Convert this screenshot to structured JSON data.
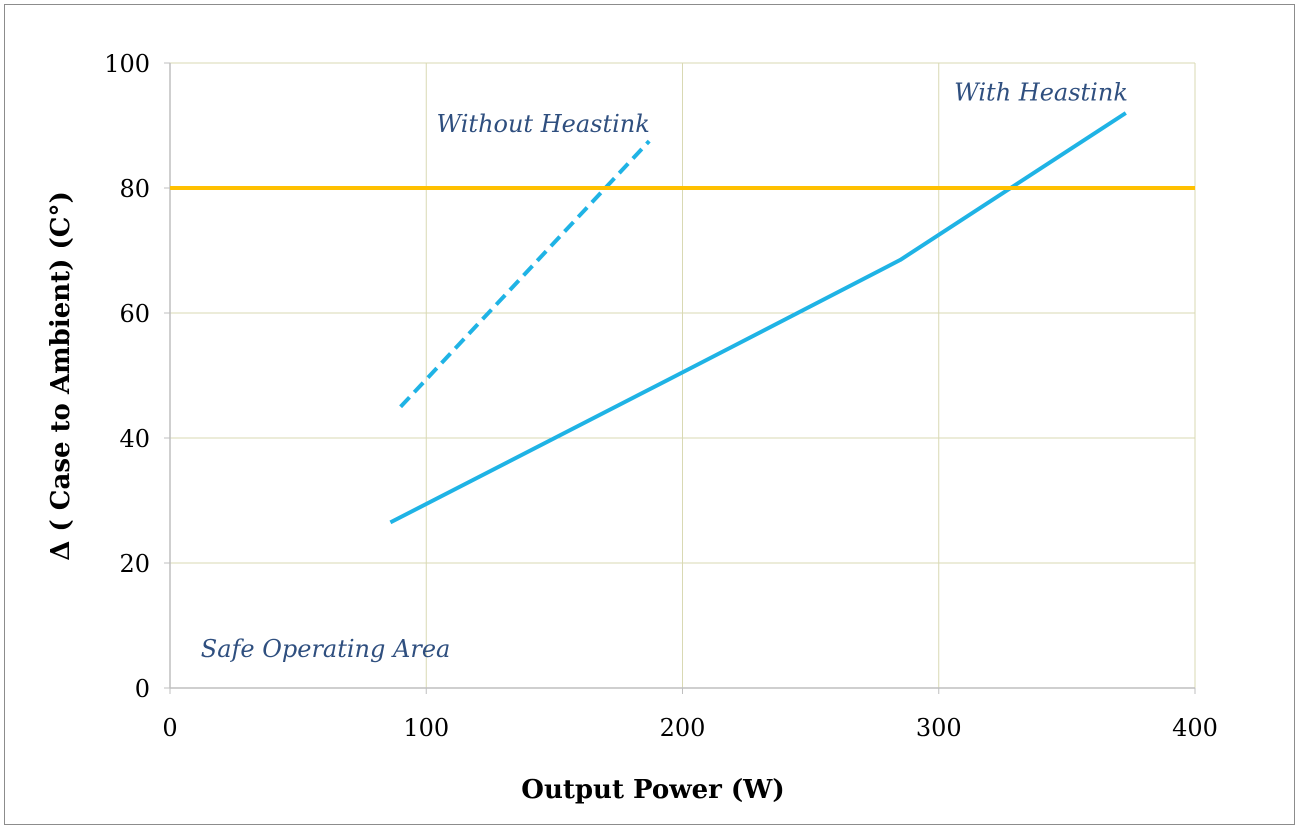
{
  "chart_data": {
    "type": "line",
    "title": "",
    "xlabel": "Output Power (W)",
    "ylabel": "Δ ( Case to Ambient) (C°)",
    "xlim": [
      0,
      400
    ],
    "ylim": [
      0,
      100
    ],
    "x_ticks": [
      0,
      100,
      200,
      300,
      400
    ],
    "y_ticks": [
      0,
      20,
      40,
      60,
      80,
      100
    ],
    "grid": true,
    "series": [
      {
        "name": "With Heastink",
        "style": "solid",
        "color": "#1fb3e5",
        "x": [
          86,
          200,
          285,
          373
        ],
        "y": [
          26.5,
          50.5,
          68.5,
          92
        ]
      },
      {
        "name": "Without Heastink",
        "style": "dashed",
        "color": "#1fb3e5",
        "x": [
          90,
          187
        ],
        "y": [
          45,
          87.5
        ]
      },
      {
        "name": "",
        "style": "solid",
        "color": "#ffc000",
        "x": [
          0,
          400
        ],
        "y": [
          80,
          80
        ]
      }
    ],
    "annotations": [
      {
        "text": "With Heastink",
        "x": 306,
        "y": 94
      },
      {
        "text": "Without Heastink",
        "x": 104,
        "y": 89
      },
      {
        "text": "Safe Operating Area",
        "x": 12,
        "y": 5
      }
    ],
    "colors": {
      "grid": "#d9d9b3",
      "axis": "#bfbfbf",
      "limit_line": "#ffc000",
      "series": "#1fb3e5",
      "annotation_text": "#2f4f7f"
    }
  }
}
